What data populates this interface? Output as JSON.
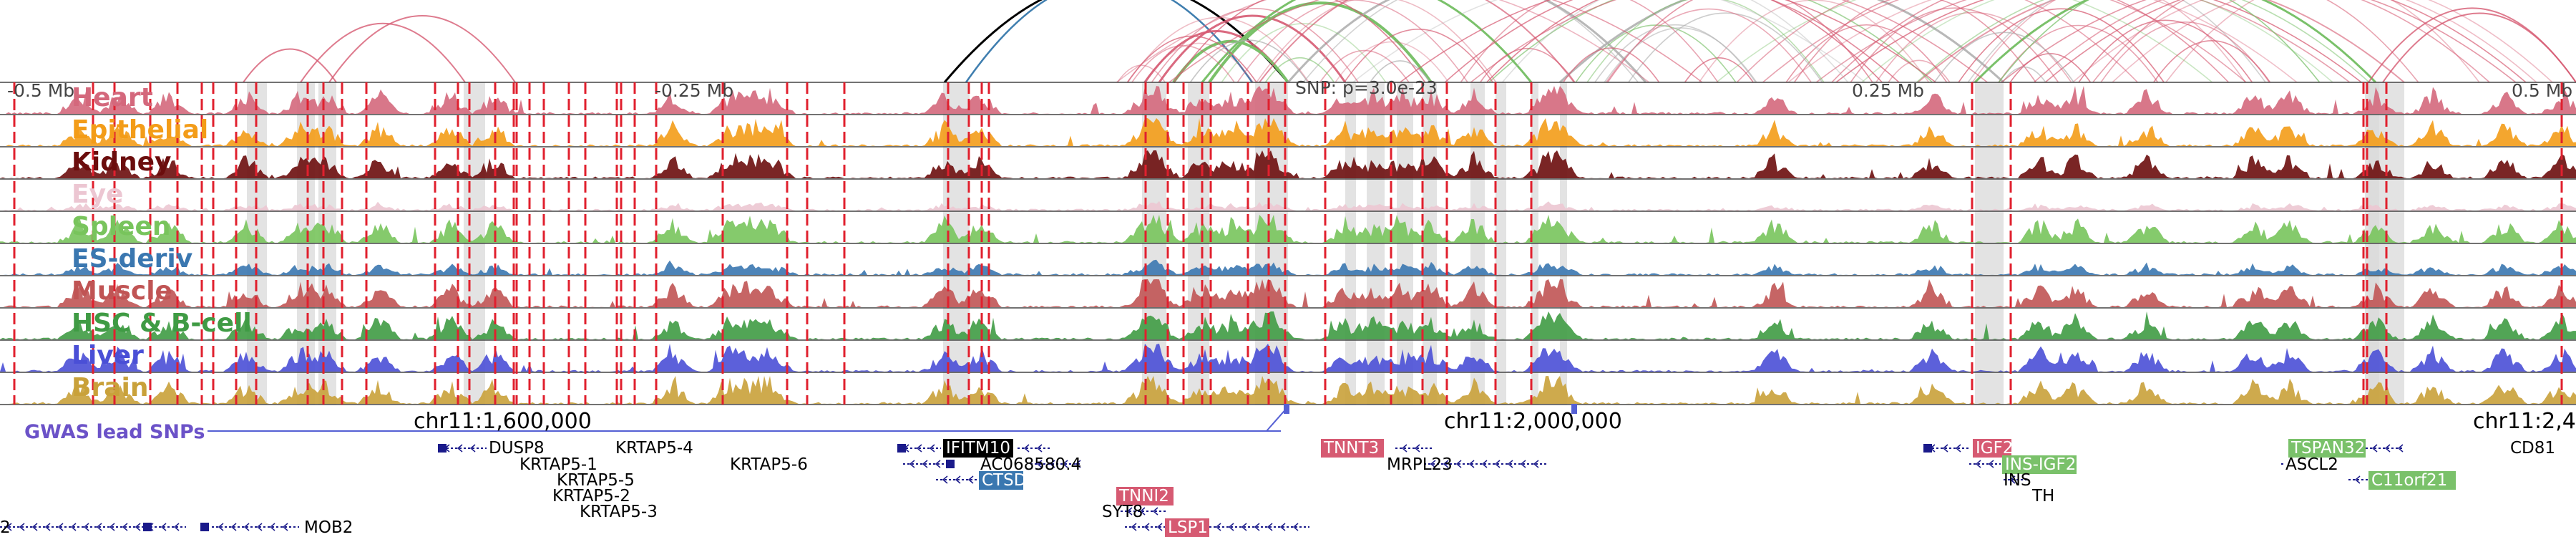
{
  "colors": {
    "Heart": "#d4687c",
    "Epithelial": "#f39c18",
    "Kidney": "#6b0d0d",
    "Eye": "#ecc6d2",
    "Spleen": "#78c45c",
    "ES-deriv": "#3a77b0",
    "Muscle": "#c05454",
    "HSC & B-cell": "#3f9b44",
    "Liver": "#4a4fd6",
    "Brain": "#c9a13a",
    "gwas": "#6b52c8",
    "snp_line": "#5560d4",
    "vline": "#e0202e",
    "highlight": "#dadada",
    "gene_track": "#1a1a8a",
    "arc_default": "#d65a72",
    "arc_green": "#7ac16a",
    "arc_gray": "#b0b0b0",
    "arc_blue": "#3f7eaf",
    "arc_black": "#000000"
  },
  "tracks": [
    "Heart",
    "Epithelial",
    "Kidney",
    "Eye",
    "Spleen",
    "ES-deriv",
    "Muscle",
    "HSC & B-cell",
    "Liver",
    "Brain"
  ],
  "relative_labels": [
    "-0.5 Mb",
    "-0.25 Mb",
    "SNP: p=3.0e-23",
    "0.25 Mb",
    "0.5 Mb"
  ],
  "coordinates": [
    "chr11:1,600,000",
    "chr11:2,000,000",
    "chr11:2,4"
  ],
  "gwas_label": "GWAS lead SNPs",
  "genes": [
    "DUSP8",
    "KRTAP5-1",
    "KRTAP5-4",
    "KRTAP5-5",
    "KRTAP5-2",
    "KRTAP5-3",
    "KRTAP5-6",
    "IFITM10",
    "AC068580.4",
    "CTSD",
    "TNNI2",
    "SYT8",
    "LSP1",
    "TNNT3",
    "MRPL23",
    "IGF2",
    "INS-IGF2",
    "INS",
    "TH",
    "TSPAN32",
    "ASCL2",
    "C11orf21",
    "CD81",
    "MOB2",
    "2"
  ]
}
